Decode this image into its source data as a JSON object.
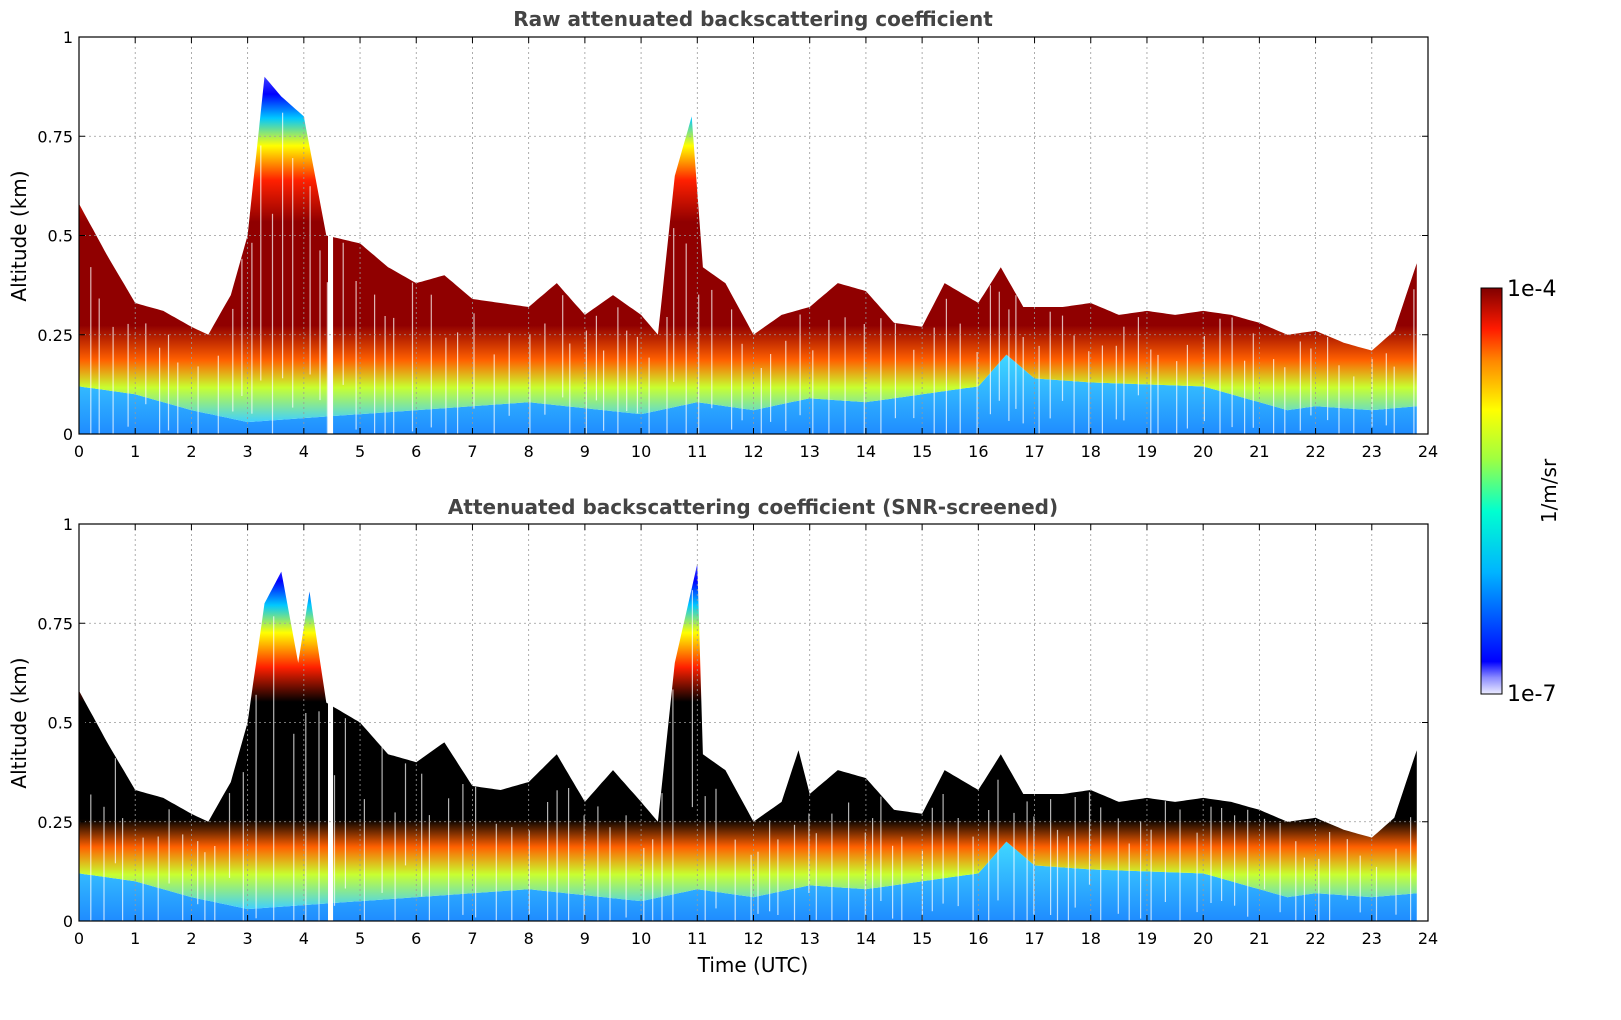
{
  "chart_data": [
    {
      "type": "heatmap",
      "title": "Raw attenuated backscattering coefficient",
      "xlabel": "",
      "ylabel": "Altitude (km)",
      "xlim": [
        0,
        24
      ],
      "ylim": [
        0,
        1
      ],
      "x_ticks": [
        "0",
        "1",
        "2",
        "3",
        "4",
        "5",
        "6",
        "7",
        "8",
        "9",
        "10",
        "11",
        "12",
        "13",
        "14",
        "15",
        "16",
        "17",
        "18",
        "19",
        "20",
        "21",
        "22",
        "23",
        "24"
      ],
      "y_ticks": [
        "0",
        "0.25",
        "0.5",
        "0.75",
        "1"
      ],
      "grid": true,
      "screened": false,
      "layer_top_km": [
        [
          0,
          0.58
        ],
        [
          0.5,
          0.45
        ],
        [
          1,
          0.33
        ],
        [
          1.5,
          0.31
        ],
        [
          2,
          0.27
        ],
        [
          2.3,
          0.25
        ],
        [
          2.7,
          0.35
        ],
        [
          3,
          0.5
        ],
        [
          3.3,
          0.9
        ],
        [
          3.6,
          0.85
        ],
        [
          4,
          0.8
        ],
        [
          4.4,
          0.5
        ],
        [
          5,
          0.48
        ],
        [
          5.5,
          0.42
        ],
        [
          6,
          0.38
        ],
        [
          6.5,
          0.4
        ],
        [
          7,
          0.34
        ],
        [
          7.5,
          0.33
        ],
        [
          8,
          0.32
        ],
        [
          8.5,
          0.38
        ],
        [
          9,
          0.3
        ],
        [
          9.5,
          0.35
        ],
        [
          10,
          0.3
        ],
        [
          10.3,
          0.25
        ],
        [
          10.6,
          0.65
        ],
        [
          10.9,
          0.8
        ],
        [
          11.1,
          0.42
        ],
        [
          11.5,
          0.38
        ],
        [
          12,
          0.25
        ],
        [
          12.5,
          0.3
        ],
        [
          13,
          0.32
        ],
        [
          13.5,
          0.38
        ],
        [
          14,
          0.36
        ],
        [
          14.5,
          0.28
        ],
        [
          15,
          0.27
        ],
        [
          15.4,
          0.38
        ],
        [
          16,
          0.33
        ],
        [
          16.4,
          0.42
        ],
        [
          16.8,
          0.32
        ],
        [
          17.5,
          0.32
        ],
        [
          18,
          0.33
        ],
        [
          18.5,
          0.3
        ],
        [
          19,
          0.31
        ],
        [
          19.5,
          0.3
        ],
        [
          20,
          0.31
        ],
        [
          20.5,
          0.3
        ],
        [
          21,
          0.28
        ],
        [
          21.5,
          0.25
        ],
        [
          22,
          0.26
        ],
        [
          22.5,
          0.23
        ],
        [
          23,
          0.21
        ],
        [
          23.4,
          0.26
        ],
        [
          23.8,
          0.43
        ]
      ],
      "layer_base_km": [
        [
          0,
          0.12
        ],
        [
          1,
          0.1
        ],
        [
          2,
          0.06
        ],
        [
          3,
          0.03
        ],
        [
          5,
          0.05
        ],
        [
          8,
          0.08
        ],
        [
          10,
          0.05
        ],
        [
          11,
          0.08
        ],
        [
          12,
          0.06
        ],
        [
          13,
          0.09
        ],
        [
          14,
          0.08
        ],
        [
          15,
          0.1
        ],
        [
          16,
          0.12
        ],
        [
          16.5,
          0.2
        ],
        [
          17,
          0.14
        ],
        [
          18,
          0.13
        ],
        [
          20,
          0.12
        ],
        [
          21,
          0.08
        ],
        [
          21.5,
          0.06
        ],
        [
          22,
          0.07
        ],
        [
          23,
          0.06
        ],
        [
          23.8,
          0.07
        ]
      ]
    },
    {
      "type": "heatmap",
      "title": "Attenuated backscattering coefficient (SNR-screened)",
      "xlabel": "Time (UTC)",
      "ylabel": "Altitude (km)",
      "xlim": [
        0,
        24
      ],
      "ylim": [
        0,
        1
      ],
      "x_ticks": [
        "0",
        "1",
        "2",
        "3",
        "4",
        "5",
        "6",
        "7",
        "8",
        "9",
        "10",
        "11",
        "12",
        "13",
        "14",
        "15",
        "16",
        "17",
        "18",
        "19",
        "20",
        "21",
        "22",
        "23",
        "24"
      ],
      "y_ticks": [
        "0",
        "0.25",
        "0.5",
        "0.75",
        "1"
      ],
      "grid": true,
      "screened": true,
      "layer_top_km": [
        [
          0,
          0.58
        ],
        [
          0.5,
          0.45
        ],
        [
          1,
          0.33
        ],
        [
          1.5,
          0.31
        ],
        [
          2,
          0.27
        ],
        [
          2.3,
          0.25
        ],
        [
          2.7,
          0.35
        ],
        [
          3,
          0.5
        ],
        [
          3.3,
          0.8
        ],
        [
          3.6,
          0.88
        ],
        [
          3.9,
          0.65
        ],
        [
          4.1,
          0.83
        ],
        [
          4.4,
          0.55
        ],
        [
          5,
          0.5
        ],
        [
          5.5,
          0.42
        ],
        [
          6,
          0.4
        ],
        [
          6.5,
          0.45
        ],
        [
          7,
          0.34
        ],
        [
          7.5,
          0.33
        ],
        [
          8,
          0.35
        ],
        [
          8.5,
          0.42
        ],
        [
          9,
          0.3
        ],
        [
          9.5,
          0.38
        ],
        [
          10,
          0.3
        ],
        [
          10.3,
          0.25
        ],
        [
          10.6,
          0.65
        ],
        [
          11,
          0.9
        ],
        [
          11.1,
          0.42
        ],
        [
          11.5,
          0.38
        ],
        [
          12,
          0.25
        ],
        [
          12.5,
          0.3
        ],
        [
          12.8,
          0.43
        ],
        [
          13,
          0.32
        ],
        [
          13.5,
          0.38
        ],
        [
          14,
          0.36
        ],
        [
          14.5,
          0.28
        ],
        [
          15,
          0.27
        ],
        [
          15.4,
          0.38
        ],
        [
          16,
          0.33
        ],
        [
          16.4,
          0.42
        ],
        [
          16.8,
          0.32
        ],
        [
          17.5,
          0.32
        ],
        [
          18,
          0.33
        ],
        [
          18.5,
          0.3
        ],
        [
          19,
          0.31
        ],
        [
          19.5,
          0.3
        ],
        [
          20,
          0.31
        ],
        [
          20.5,
          0.3
        ],
        [
          21,
          0.28
        ],
        [
          21.5,
          0.25
        ],
        [
          22,
          0.26
        ],
        [
          22.5,
          0.23
        ],
        [
          23,
          0.21
        ],
        [
          23.4,
          0.26
        ],
        [
          23.8,
          0.43
        ]
      ],
      "layer_base_km": [
        [
          0,
          0.12
        ],
        [
          1,
          0.1
        ],
        [
          2,
          0.06
        ],
        [
          3,
          0.03
        ],
        [
          5,
          0.05
        ],
        [
          8,
          0.08
        ],
        [
          10,
          0.05
        ],
        [
          11,
          0.08
        ],
        [
          12,
          0.06
        ],
        [
          13,
          0.09
        ],
        [
          14,
          0.08
        ],
        [
          15,
          0.1
        ],
        [
          16,
          0.12
        ],
        [
          16.5,
          0.2
        ],
        [
          17,
          0.14
        ],
        [
          18,
          0.13
        ],
        [
          20,
          0.12
        ],
        [
          21,
          0.08
        ],
        [
          21.5,
          0.06
        ],
        [
          22,
          0.07
        ],
        [
          23,
          0.06
        ],
        [
          23.8,
          0.07
        ]
      ]
    }
  ],
  "colorbar": {
    "max_label": "1e-4",
    "min_label": "1e-7",
    "unit_label": "1/m/sr"
  }
}
